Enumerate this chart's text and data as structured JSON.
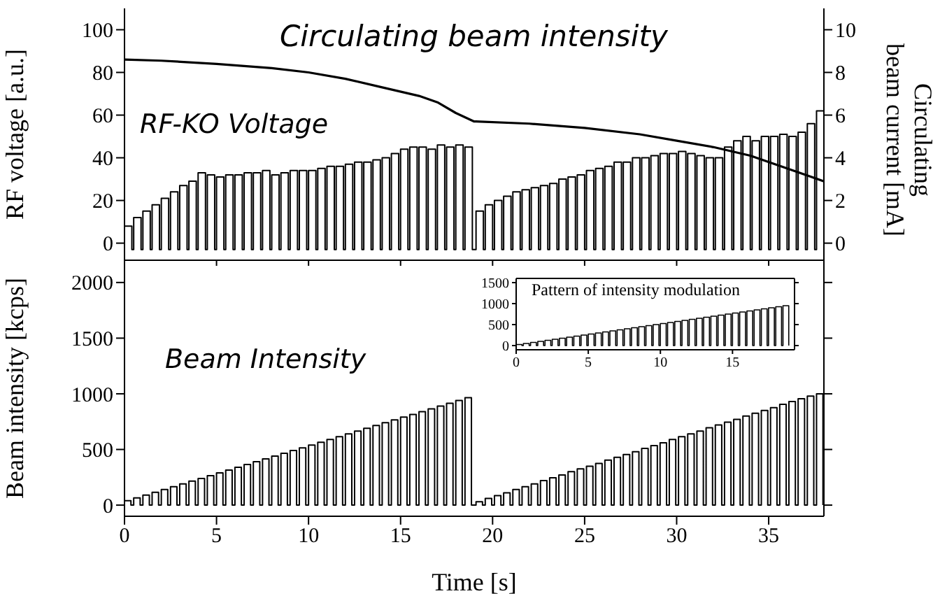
{
  "chart_data": [
    {
      "type": "step",
      "ylabel": "RF voltage [a.u.]",
      "y2label": "Circulating\nbeam current [mA]",
      "xlim": [
        0,
        38
      ],
      "xticks": [
        0,
        5,
        10,
        15,
        20,
        25,
        30,
        35
      ],
      "ylim": [
        -8,
        110
      ],
      "yticks": [
        0,
        20,
        40,
        60,
        80,
        100
      ],
      "y2lim": [
        -0.8,
        11
      ],
      "y2ticks": [
        0,
        2,
        4,
        6,
        8,
        10
      ],
      "tick_labels": "y",
      "series": [
        {
          "name": "RF-KO Voltage",
          "color": "#000000",
          "x": [
            0,
            0.4,
            0.5,
            0.9,
            1,
            1.4,
            1.5,
            1.9,
            2,
            2.4,
            2.5,
            2.9,
            3,
            3.4,
            3.5,
            3.9,
            4,
            4.4,
            4.5,
            4.9,
            5,
            5.4,
            5.5,
            5.9,
            6,
            6.4,
            6.5,
            6.9,
            7,
            7.4,
            7.5,
            7.9,
            8,
            8.4,
            8.5,
            8.9,
            9,
            9.4,
            9.5,
            9.9,
            10,
            10.4,
            10.5,
            10.9,
            11,
            11.4,
            11.5,
            11.9,
            12,
            12.4,
            12.5,
            12.9,
            13,
            13.4,
            13.5,
            13.9,
            14,
            14.4,
            14.5,
            14.9,
            15,
            15.4,
            15.5,
            15.9,
            16,
            16.4,
            16.5,
            16.9,
            17,
            17.4,
            17.5,
            17.9,
            18,
            18.4,
            18.5,
            18.9,
            19.1,
            19.5,
            19.6,
            20,
            20.1,
            20.5,
            20.6,
            21,
            21.1,
            21.5,
            21.6,
            22,
            22.1,
            22.5,
            22.6,
            23,
            23.1,
            23.5,
            23.6,
            24,
            24.1,
            24.5,
            24.6,
            25,
            25.1,
            25.5,
            25.6,
            26,
            26.1,
            26.5,
            26.6,
            27,
            27.1,
            27.5,
            27.6,
            28,
            28.1,
            28.5,
            28.6,
            29,
            29.1,
            29.5,
            29.6,
            30,
            30.1,
            30.5,
            30.6,
            31,
            31.1,
            31.5,
            31.6,
            32,
            32.1,
            32.5,
            32.6,
            33,
            33.1,
            33.5,
            33.6,
            34,
            34.1,
            34.5,
            34.6,
            35,
            35.1,
            35.5,
            35.6,
            36,
            36.1,
            36.5,
            36.6,
            37,
            37.1,
            37.5,
            37.6,
            38
          ],
          "values": [
            8,
            -3,
            12,
            -3,
            15,
            -3,
            18,
            -3,
            21,
            -3,
            24,
            -3,
            27,
            -3,
            29,
            -3,
            33,
            -3,
            32,
            -3,
            31,
            -3,
            32,
            -3,
            32,
            -3,
            33,
            -3,
            33,
            -3,
            34,
            -3,
            32,
            -3,
            33,
            -3,
            34,
            -3,
            34,
            -3,
            34,
            -3,
            35,
            -3,
            36,
            -3,
            36,
            -3,
            37,
            -3,
            38,
            -3,
            38,
            -3,
            39,
            -3,
            40,
            -3,
            42,
            -3,
            44,
            -3,
            45,
            -3,
            45,
            -3,
            44,
            -3,
            46,
            -3,
            45,
            -3,
            46,
            -3,
            45,
            -3,
            15,
            -3,
            18,
            -3,
            20,
            -3,
            22,
            -3,
            24,
            -3,
            25,
            -3,
            26,
            -3,
            27,
            -3,
            28,
            -3,
            30,
            -3,
            31,
            -3,
            32,
            -3,
            34,
            -3,
            35,
            -3,
            36,
            -3,
            38,
            -3,
            38,
            -3,
            40,
            -3,
            40,
            -3,
            41,
            -3,
            42,
            -3,
            42,
            -3,
            43,
            -3,
            42,
            -3,
            41,
            -3,
            40,
            -3,
            40,
            -3,
            45,
            -3,
            48,
            -3,
            50,
            -3,
            48,
            -3,
            50,
            -3,
            50,
            -3,
            51,
            -3,
            50,
            -3,
            52,
            -3,
            56,
            -3,
            62,
            -3
          ]
        },
        {
          "name": "Circulating beam intensity",
          "type": "line",
          "axis": "y2",
          "color": "#000000",
          "x": [
            0,
            2,
            5,
            8,
            10,
            12,
            14,
            16,
            17,
            18,
            19,
            19.1,
            22,
            25,
            28,
            30,
            32,
            34,
            36,
            38
          ],
          "values": [
            8.6,
            8.55,
            8.4,
            8.2,
            8.0,
            7.7,
            7.3,
            6.9,
            6.6,
            6.1,
            5.7,
            5.7,
            5.6,
            5.4,
            5.1,
            4.8,
            4.5,
            4.1,
            3.5,
            2.9
          ]
        }
      ]
    },
    {
      "type": "step",
      "xlabel": "Time [s]",
      "ylabel": "Beam intensity [kcps]",
      "xlim": [
        0,
        38
      ],
      "xticks": [
        0,
        5,
        10,
        15,
        20,
        25,
        30,
        35
      ],
      "ylim": [
        -100,
        2200
      ],
      "yticks": [
        0,
        500,
        1000,
        1500,
        2000
      ],
      "series": [
        {
          "name": "Beam Intensity",
          "color": "#000000",
          "x": [
            0,
            0.35,
            0.5,
            0.85,
            1,
            1.35,
            1.5,
            1.85,
            2,
            2.35,
            2.5,
            2.85,
            3,
            3.35,
            3.5,
            3.85,
            4,
            4.35,
            4.5,
            4.85,
            5,
            5.35,
            5.5,
            5.85,
            6,
            6.35,
            6.5,
            6.85,
            7,
            7.35,
            7.5,
            7.85,
            8,
            8.35,
            8.5,
            8.85,
            9,
            9.35,
            9.5,
            9.85,
            10,
            10.35,
            10.5,
            10.85,
            11,
            11.35,
            11.5,
            11.85,
            12,
            12.35,
            12.5,
            12.85,
            13,
            13.35,
            13.5,
            13.85,
            14,
            14.35,
            14.5,
            14.85,
            15,
            15.35,
            15.5,
            15.85,
            16,
            16.35,
            16.5,
            16.85,
            17,
            17.35,
            17.5,
            17.85,
            18,
            18.35,
            18.5,
            18.85,
            19.1,
            19.45,
            19.6,
            19.95,
            20.1,
            20.45,
            20.6,
            20.95,
            21.1,
            21.45,
            21.6,
            21.95,
            22.1,
            22.45,
            22.6,
            22.95,
            23.1,
            23.45,
            23.6,
            23.95,
            24.1,
            24.45,
            24.6,
            24.95,
            25.1,
            25.45,
            25.6,
            25.95,
            26.1,
            26.45,
            26.6,
            26.95,
            27.1,
            27.45,
            27.6,
            27.95,
            28.1,
            28.45,
            28.6,
            28.95,
            29.1,
            29.45,
            29.6,
            29.95,
            30.1,
            30.45,
            30.6,
            30.95,
            31.1,
            31.45,
            31.6,
            31.95,
            32.1,
            32.45,
            32.6,
            32.95,
            33.1,
            33.45,
            33.6,
            33.95,
            34.1,
            34.45,
            34.6,
            34.95,
            35.1,
            35.45,
            35.6,
            35.95,
            36.1,
            36.45,
            36.6,
            36.95,
            37.1,
            37.45,
            37.6,
            37.95
          ],
          "values": [
            40,
            0,
            65,
            0,
            90,
            0,
            115,
            0,
            140,
            0,
            165,
            0,
            190,
            0,
            215,
            0,
            240,
            0,
            265,
            0,
            290,
            0,
            315,
            0,
            340,
            0,
            365,
            0,
            390,
            0,
            415,
            0,
            440,
            0,
            465,
            0,
            490,
            0,
            515,
            0,
            540,
            0,
            565,
            0,
            590,
            0,
            615,
            0,
            640,
            0,
            665,
            0,
            690,
            0,
            715,
            0,
            740,
            0,
            765,
            0,
            790,
            0,
            815,
            0,
            840,
            0,
            865,
            0,
            890,
            0,
            915,
            0,
            940,
            0,
            965,
            0,
            30,
            0,
            60,
            0,
            85,
            0,
            110,
            0,
            140,
            0,
            165,
            0,
            190,
            0,
            220,
            0,
            245,
            0,
            270,
            0,
            300,
            0,
            325,
            0,
            350,
            0,
            375,
            0,
            405,
            0,
            430,
            0,
            455,
            0,
            480,
            0,
            510,
            0,
            535,
            0,
            560,
            0,
            590,
            0,
            615,
            0,
            640,
            0,
            665,
            0,
            695,
            0,
            720,
            0,
            745,
            0,
            770,
            0,
            800,
            0,
            825,
            0,
            850,
            0,
            875,
            0,
            905,
            0,
            930,
            0,
            955,
            0,
            980,
            0,
            1000,
            0
          ]
        }
      ]
    },
    {
      "type": "step",
      "title": "Pattern of intensity modulation",
      "xlim": [
        0,
        19.3
      ],
      "xticks": [
        0,
        5,
        10,
        15
      ],
      "ylim": [
        -100,
        1600
      ],
      "yticks": [
        0,
        500,
        1000,
        1500
      ],
      "series": [
        {
          "color": "#000000",
          "x": [
            0,
            0.4,
            0.5,
            0.9,
            1,
            1.4,
            1.5,
            1.9,
            2,
            2.4,
            2.5,
            2.9,
            3,
            3.4,
            3.5,
            3.9,
            4,
            4.4,
            4.5,
            4.9,
            5,
            5.4,
            5.5,
            5.9,
            6,
            6.4,
            6.5,
            6.9,
            7,
            7.4,
            7.5,
            7.9,
            8,
            8.4,
            8.5,
            8.9,
            9,
            9.4,
            9.5,
            9.9,
            10,
            10.4,
            10.5,
            10.9,
            11,
            11.4,
            11.5,
            11.9,
            12,
            12.4,
            12.5,
            12.9,
            13,
            13.4,
            13.5,
            13.9,
            14,
            14.4,
            14.5,
            14.9,
            15,
            15.4,
            15.5,
            15.9,
            16,
            16.4,
            16.5,
            16.9,
            17,
            17.4,
            17.5,
            17.9,
            18,
            18.4,
            18.5,
            18.9
          ],
          "values": [
            25,
            0,
            50,
            0,
            75,
            0,
            100,
            0,
            125,
            0,
            150,
            0,
            175,
            0,
            200,
            0,
            225,
            0,
            250,
            0,
            275,
            0,
            300,
            0,
            325,
            0,
            350,
            0,
            375,
            0,
            400,
            0,
            425,
            0,
            450,
            0,
            475,
            0,
            500,
            0,
            525,
            0,
            550,
            0,
            575,
            0,
            600,
            0,
            625,
            0,
            650,
            0,
            675,
            0,
            700,
            0,
            725,
            0,
            750,
            0,
            775,
            0,
            800,
            0,
            825,
            0,
            850,
            0,
            875,
            0,
            900,
            0,
            925,
            0,
            950,
            0
          ]
        }
      ]
    }
  ]
}
